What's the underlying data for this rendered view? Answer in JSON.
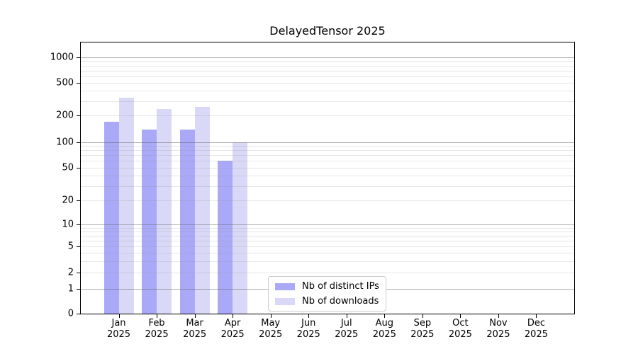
{
  "chart_data": {
    "type": "bar",
    "title": "DelayedTensor 2025",
    "xlabel": "",
    "ylabel": "",
    "categories": [
      "Jan 2025",
      "Feb 2025",
      "Mar 2025",
      "Apr 2025",
      "May 2025",
      "Jun 2025",
      "Jul 2025",
      "Aug 2025",
      "Sep 2025",
      "Oct 2025",
      "Nov 2025",
      "Dec 2025"
    ],
    "series": [
      {
        "name": "Nb of distinct IPs",
        "color": "#a9a9f7",
        "values": [
          172,
          140,
          138,
          60,
          0,
          0,
          0,
          0,
          0,
          0,
          0,
          0
        ]
      },
      {
        "name": "Nb of downloads",
        "color": "#d9d9f7",
        "values": [
          330,
          240,
          255,
          100,
          0,
          0,
          0,
          0,
          0,
          0,
          0,
          0
        ]
      }
    ],
    "y_scale": "log (linear segment between 0 and 1)",
    "y_ticks": [
      0,
      1,
      2,
      5,
      10,
      20,
      50,
      100,
      200,
      500,
      1000
    ],
    "y_major_gridlines": [
      1,
      10,
      100,
      1000
    ],
    "ylim": [
      0,
      1500
    ],
    "grid": true,
    "grid_major_color": "#b0b0b0",
    "grid_minor_color": "#e7e7e7",
    "axis_color": "#000000",
    "legend": {
      "position": "lower center",
      "entries": [
        "Nb of distinct IPs",
        "Nb of downloads"
      ]
    }
  }
}
